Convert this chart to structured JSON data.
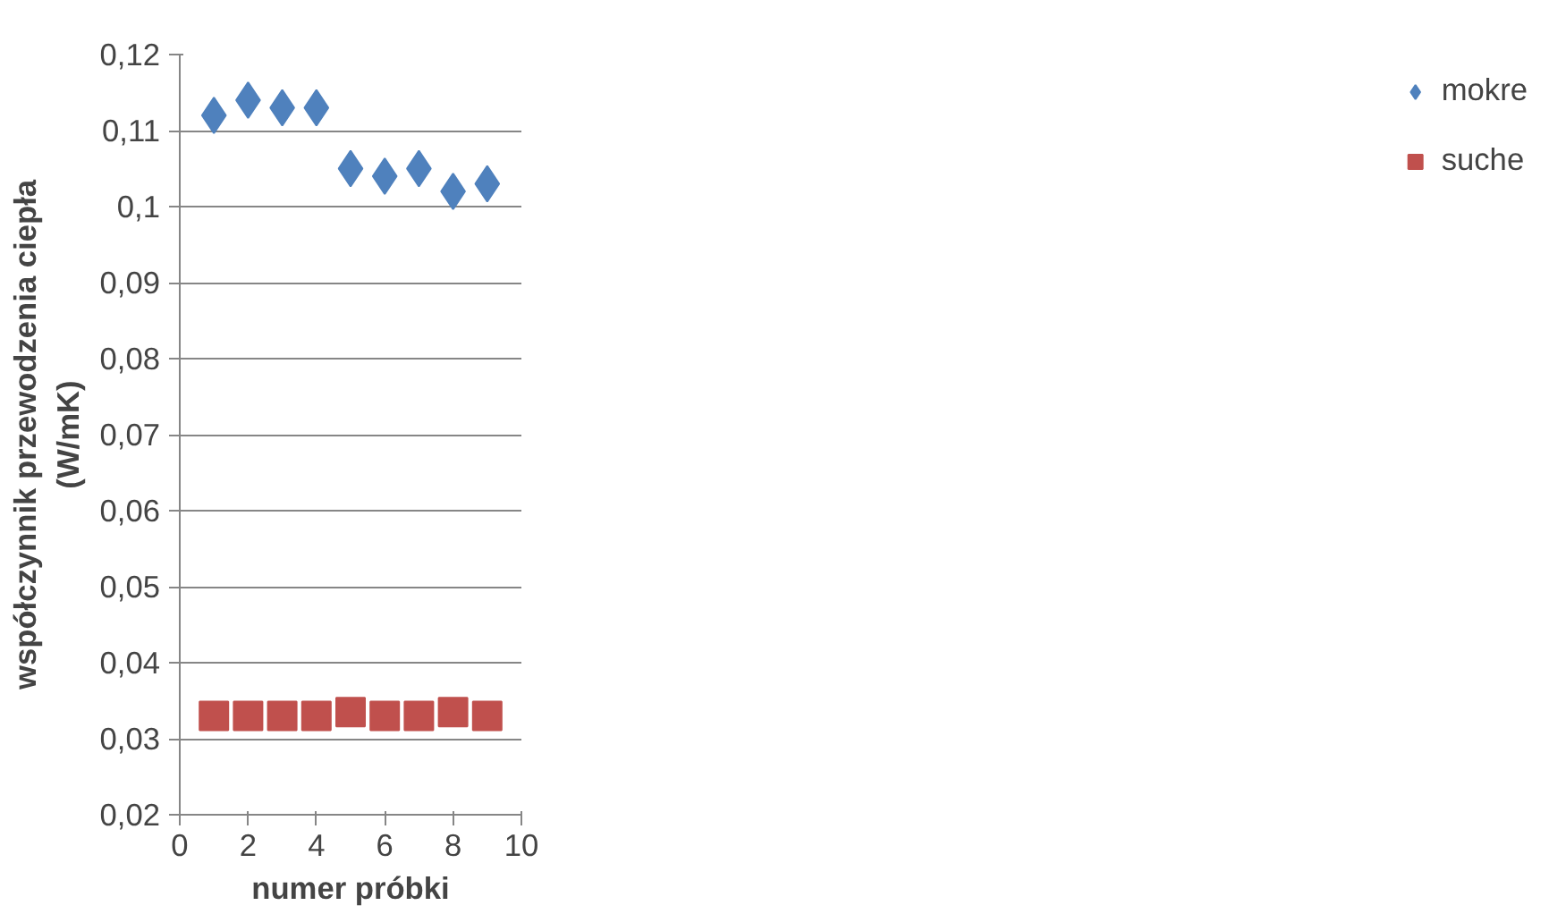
{
  "chart_data": {
    "type": "scatter",
    "xlabel": "numer próbki",
    "ylabel": "współczynnik przewodzenia ciepła\n(W/mK)",
    "x": [
      1,
      2,
      3,
      4,
      5,
      6,
      7,
      8,
      9
    ],
    "series": [
      {
        "name": "mokre",
        "color": "#4f81bd",
        "marker": "diamond",
        "values": [
          0.112,
          0.114,
          0.113,
          0.113,
          0.105,
          0.104,
          0.105,
          0.102,
          0.103
        ]
      },
      {
        "name": "suche",
        "color": "#c0504d",
        "marker": "square",
        "values": [
          0.033,
          0.033,
          0.033,
          0.033,
          0.0335,
          0.033,
          0.033,
          0.0335,
          0.033
        ]
      }
    ],
    "xlim": [
      0,
      10
    ],
    "xticks": [
      0,
      2,
      4,
      6,
      8,
      10
    ],
    "ylim": [
      0.02,
      0.12
    ],
    "yticks": [
      {
        "value": 0.02,
        "label": "0,02"
      },
      {
        "value": 0.03,
        "label": "0,03"
      },
      {
        "value": 0.04,
        "label": "0,04"
      },
      {
        "value": 0.05,
        "label": "0,05"
      },
      {
        "value": 0.06,
        "label": "0,06"
      },
      {
        "value": 0.07,
        "label": "0,07"
      },
      {
        "value": 0.08,
        "label": "0,08"
      },
      {
        "value": 0.09,
        "label": "0,09"
      },
      {
        "value": 0.1,
        "label": "0,1"
      },
      {
        "value": 0.11,
        "label": "0,11"
      },
      {
        "value": 0.12,
        "label": "0,12"
      }
    ],
    "grid": "y",
    "legend": "right"
  }
}
